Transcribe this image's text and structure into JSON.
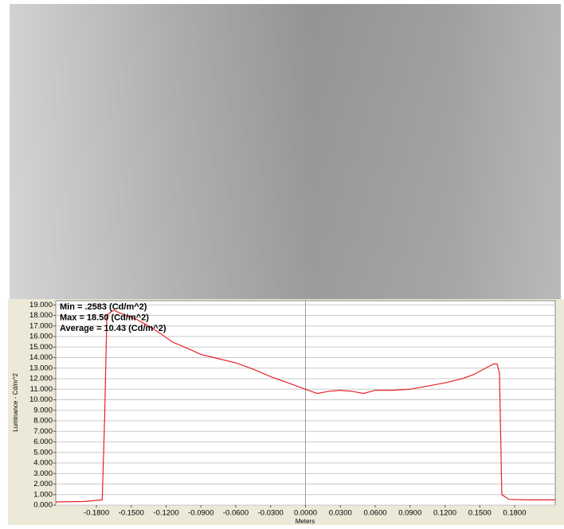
{
  "chart_data": {
    "type": "line",
    "annotations": [
      "Min = .2583 (Cd/m^2)",
      "Max = 18.50 (Cd/m^2)",
      "Average = 10.43 (Cd/m^2)"
    ],
    "x_label": "Meters",
    "y_label": "Luminance - Cd/m^2",
    "x": [
      -0.215,
      -0.19,
      -0.175,
      -0.173,
      -0.171,
      -0.168,
      -0.165,
      -0.155,
      -0.145,
      -0.135,
      -0.125,
      -0.115,
      -0.1,
      -0.09,
      -0.075,
      -0.06,
      -0.045,
      -0.03,
      -0.015,
      0.0,
      0.01,
      0.02,
      0.03,
      0.04,
      0.05,
      0.06,
      0.075,
      0.09,
      0.105,
      0.12,
      0.135,
      0.145,
      0.155,
      0.162,
      0.165,
      0.167,
      0.169,
      0.175,
      0.19,
      0.215
    ],
    "values": [
      0.3,
      0.35,
      0.5,
      8.0,
      18.0,
      18.3,
      18.5,
      18.0,
      17.6,
      17.0,
      16.3,
      15.5,
      14.8,
      14.3,
      13.9,
      13.5,
      12.9,
      12.2,
      11.6,
      11.0,
      10.6,
      10.8,
      10.9,
      10.8,
      10.6,
      10.9,
      10.9,
      11.0,
      11.3,
      11.6,
      12.0,
      12.4,
      13.0,
      13.4,
      13.4,
      12.5,
      1.0,
      0.55,
      0.5,
      0.5
    ],
    "color": "#e8202a",
    "xlim": [
      -0.215,
      0.215
    ],
    "ylim": [
      0,
      19.4
    ],
    "xticks": [
      {
        "value": -0.18,
        "label": "-0.1800"
      },
      {
        "value": -0.15,
        "label": "-0.1500"
      },
      {
        "value": -0.12,
        "label": "-0.1200"
      },
      {
        "value": -0.09,
        "label": "-0.0900"
      },
      {
        "value": -0.06,
        "label": "-0.0600"
      },
      {
        "value": -0.03,
        "label": "-0.0300"
      },
      {
        "value": 0,
        "label": "0.0000"
      },
      {
        "value": 0.03,
        "label": "0.0300"
      },
      {
        "value": 0.06,
        "label": "0.0600"
      },
      {
        "value": 0.09,
        "label": "0.0900"
      },
      {
        "value": 0.12,
        "label": "0.1200"
      },
      {
        "value": 0.15,
        "label": "0.1500"
      },
      {
        "value": 0.18,
        "label": "0.1800"
      }
    ],
    "yticks": [
      {
        "value": 0,
        "label": "0.000"
      },
      {
        "value": 1,
        "label": "1.000"
      },
      {
        "value": 2,
        "label": "2.000"
      },
      {
        "value": 3,
        "label": "3.000"
      },
      {
        "value": 4,
        "label": "4.000"
      },
      {
        "value": 5,
        "label": "5.000"
      },
      {
        "value": 6,
        "label": "6.000"
      },
      {
        "value": 7,
        "label": "7.000"
      },
      {
        "value": 8,
        "label": "8.000"
      },
      {
        "value": 9,
        "label": "9.000"
      },
      {
        "value": 10,
        "label": "10.000"
      },
      {
        "value": 11,
        "label": "11.000"
      },
      {
        "value": 12,
        "label": "12.000"
      },
      {
        "value": 13,
        "label": "13.000"
      },
      {
        "value": 14,
        "label": "14.000"
      },
      {
        "value": 15,
        "label": "15.000"
      },
      {
        "value": 16,
        "label": "16.000"
      },
      {
        "value": 17,
        "label": "17.000"
      },
      {
        "value": 18,
        "label": "18.000"
      },
      {
        "value": 19,
        "label": "19.000"
      }
    ],
    "grid": true
  }
}
